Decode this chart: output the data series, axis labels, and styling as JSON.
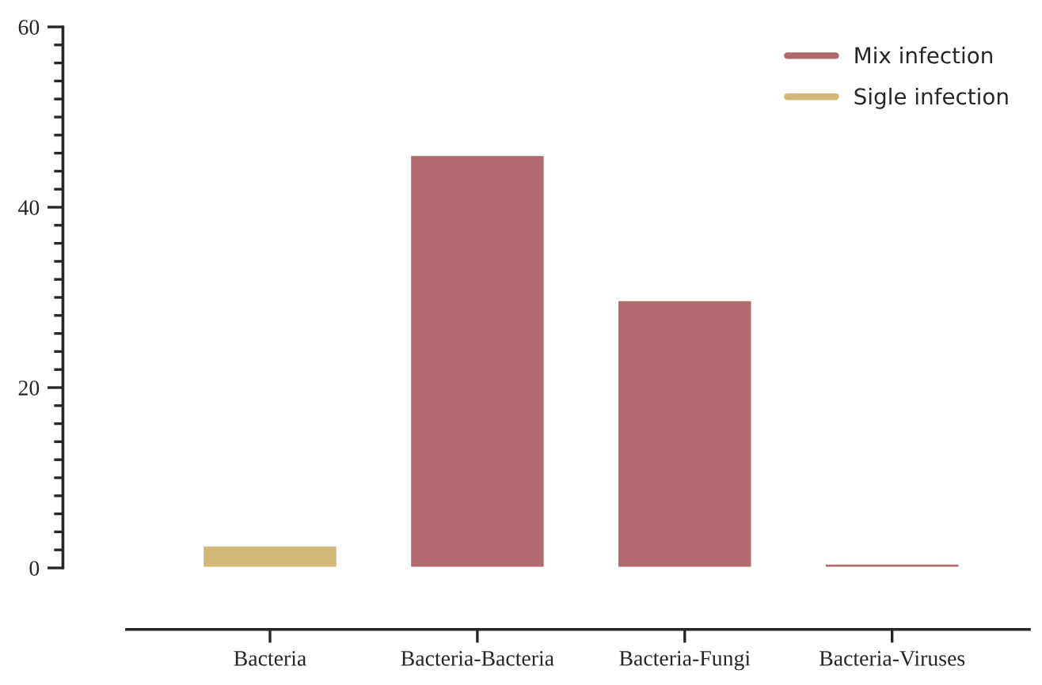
{
  "chart_data": {
    "type": "bar",
    "categories": [
      "Bacteria",
      "Bacteria-Bacteria",
      "Bacteria-Fungi",
      "Bacteria-Viruses"
    ],
    "series": [
      {
        "name": "Mix infection",
        "color": "#b0696c",
        "values": [
          null,
          45.8,
          29.7,
          0.5
        ]
      },
      {
        "name": "Sigle infection",
        "color": "#d4b87a",
        "values": [
          2.5,
          null,
          null,
          null
        ]
      }
    ],
    "ylim": [
      0,
      60
    ],
    "yticks": [
      0,
      20,
      40,
      60
    ],
    "legend": "top right",
    "grid": false
  }
}
